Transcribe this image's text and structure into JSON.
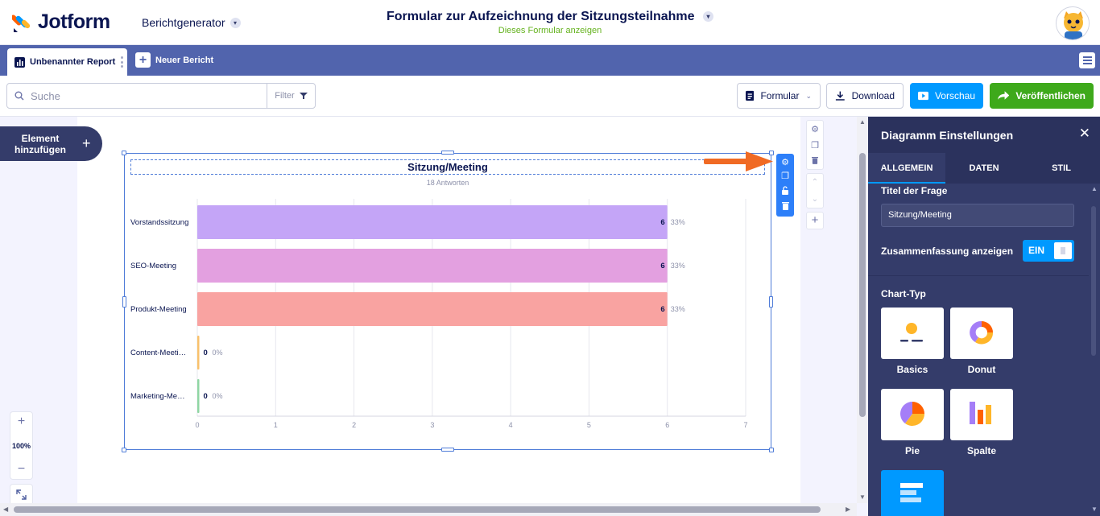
{
  "header": {
    "logo_text": "Jotform",
    "app_switch": "Berichtgenerator",
    "form_title": "Formular zur Aufzeichnung der Sitzungsteilnahme",
    "form_link": "Dieses Formular anzeigen"
  },
  "tabs": {
    "active_label": "Unbenannter Report",
    "new_label": "Neuer Bericht"
  },
  "toolbar": {
    "search_placeholder": "Suche",
    "filter_label": "Filter",
    "form_label": "Formular",
    "download_label": "Download",
    "preview_label": "Vorschau",
    "publish_label": "Veröffentlichen"
  },
  "canvas": {
    "add_element_label": "Element hinzufügen",
    "zoom_level": "100%"
  },
  "chart_data": {
    "type": "bar",
    "orientation": "horizontal",
    "title": "Sitzung/Meeting",
    "subtitle": "18 Antworten",
    "categories": [
      "Vorstandssitzung",
      "SEO-Meeting",
      "Produkt-Meeting",
      "Content-Meeti…",
      "Marketing-Me…"
    ],
    "values": [
      6,
      6,
      6,
      0,
      0
    ],
    "percent_labels": [
      "33%",
      "33%",
      "33%",
      "0%",
      "0%"
    ],
    "colors": [
      "#c4a5f7",
      "#e3a0e0",
      "#f9a3a1",
      "#f9c16b",
      "#8fd6a3"
    ],
    "xlim": [
      0,
      7
    ],
    "xticks": [
      "0",
      "1",
      "2",
      "3",
      "4",
      "5",
      "6",
      "7"
    ],
    "grid": true
  },
  "panel": {
    "title": "Diagramm Einstellungen",
    "tabs": [
      "ALLGEMEIN",
      "DATEN",
      "STIL"
    ],
    "question_title_label": "Titel der Frage",
    "question_title_value": "Sitzung/Meeting",
    "summary_label": "Zusammenfassung anzeigen",
    "summary_toggle": "EIN",
    "chart_type_label": "Chart-Typ",
    "chart_types": [
      "Basics",
      "Donut",
      "Pie",
      "Spalte"
    ]
  },
  "colors": {
    "accent": "#0099ff",
    "publish": "#3ea91b",
    "tabbar": "#5164ad",
    "panel": "#343c6a",
    "arrow": "#f06a24"
  }
}
